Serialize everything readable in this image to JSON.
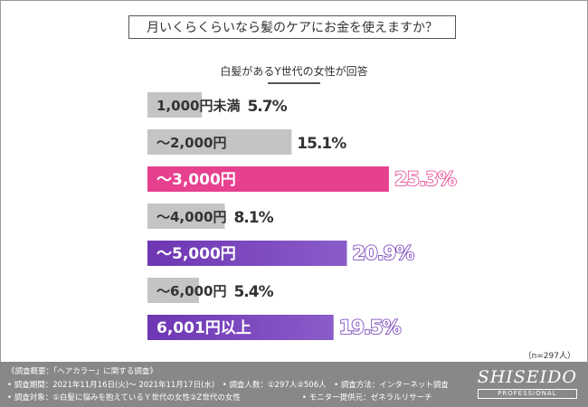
{
  "chart_data": {
    "type": "bar",
    "title": "月いくらくらいなら髪のケアにお金を使えますか？",
    "subtitle": "白髪があるY世代の女性が回答",
    "categories": [
      "1,000円未満",
      "〜2,000円",
      "〜3,000円",
      "〜4,000円",
      "〜5,000円",
      "〜6,000円",
      "6,001円以上"
    ],
    "values": [
      5.7,
      15.1,
      25.3,
      8.1,
      20.9,
      5.4,
      19.5
    ],
    "value_labels": [
      "5.7%",
      "15.1%",
      "25.3%",
      "8.1%",
      "20.9%",
      "5.4%",
      "19.5%"
    ],
    "highlight": [
      false,
      false,
      true,
      false,
      true,
      false,
      true
    ],
    "bar_styles": [
      "gray",
      "gray",
      "pink",
      "gray",
      "purple",
      "gray",
      "purple"
    ],
    "colors": {
      "gray": "#c4c4c4",
      "pink": "#e6408f",
      "purple": "#6e36b3",
      "purple_light": "#8a5cc9",
      "gray_label": "#333333"
    },
    "sample_note": "（n=297人）"
  },
  "footer": {
    "line1": "《調査概要：「ヘアカラー」に関する調査》",
    "line2": "• 調査期間：2021年11月16日(火)〜 2021年11月17日(水)　• 調査人数：①297人②506人　• 調査方法：インターネット調査",
    "line3": "• 調査対象：①白髪に悩みを抱えているＹ世代の女性②Z世代の女性　　　　　　　　• モニター提供元：ゼネラルリサーチ",
    "logo": "SHISEIDO",
    "logo_sub": "PROFESSIONAL"
  }
}
